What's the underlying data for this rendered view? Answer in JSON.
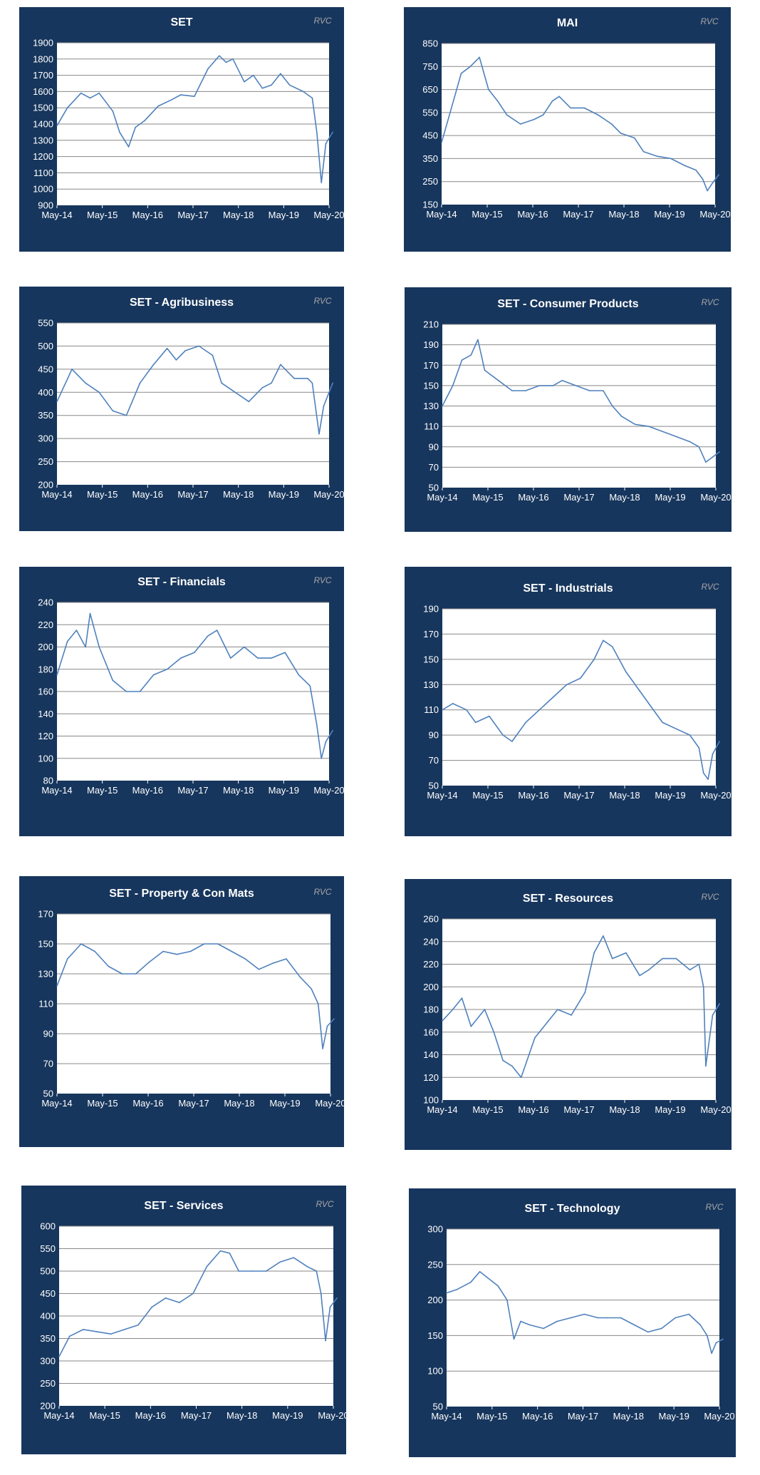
{
  "brand_label": "RVC",
  "colors": {
    "panel": "#17365d",
    "plot": "#ffffff",
    "line": "#4f81bd",
    "grid": "#888888",
    "brand": "#a6a6a6"
  },
  "x_tick_labels": [
    "May-14",
    "May-15",
    "May-16",
    "May-17",
    "May-18",
    "May-19",
    "May-20"
  ],
  "chart_data": [
    {
      "type": "line",
      "title": "SET",
      "ylim": [
        900,
        1900
      ],
      "yticks": [
        900,
        1000,
        1100,
        1200,
        1300,
        1400,
        1500,
        1600,
        1700,
        1800,
        1900
      ],
      "x": [
        2014.37,
        2014.6,
        2014.9,
        2015.1,
        2015.3,
        2015.6,
        2015.75,
        2015.95,
        2016.1,
        2016.3,
        2016.6,
        2016.9,
        2017.1,
        2017.4,
        2017.7,
        2017.95,
        2018.1,
        2018.25,
        2018.5,
        2018.7,
        2018.9,
        2019.1,
        2019.3,
        2019.5,
        2019.8,
        2020.0,
        2020.1,
        2020.2,
        2020.3,
        2020.45
      ],
      "y": [
        1390,
        1500,
        1590,
        1560,
        1590,
        1480,
        1350,
        1260,
        1380,
        1420,
        1510,
        1550,
        1580,
        1570,
        1740,
        1820,
        1780,
        1800,
        1660,
        1700,
        1620,
        1640,
        1710,
        1640,
        1600,
        1560,
        1350,
        1040,
        1280,
        1350
      ]
    },
    {
      "type": "line",
      "title": "MAI",
      "ylim": [
        150,
        850
      ],
      "yticks": [
        150,
        250,
        350,
        450,
        550,
        650,
        750,
        850
      ],
      "x": [
        2014.37,
        2014.6,
        2014.8,
        2015.0,
        2015.2,
        2015.4,
        2015.6,
        2015.8,
        2016.1,
        2016.4,
        2016.6,
        2016.8,
        2016.95,
        2017.2,
        2017.5,
        2017.8,
        2018.1,
        2018.3,
        2018.6,
        2018.8,
        2019.1,
        2019.4,
        2019.7,
        2019.95,
        2020.1,
        2020.2,
        2020.3,
        2020.45
      ],
      "y": [
        420,
        580,
        720,
        750,
        790,
        650,
        600,
        540,
        500,
        520,
        540,
        600,
        620,
        570,
        570,
        540,
        500,
        460,
        440,
        380,
        360,
        350,
        320,
        300,
        260,
        210,
        240,
        280
      ]
    },
    {
      "type": "line",
      "title": "SET - Agribusiness",
      "ylim": [
        200,
        550
      ],
      "yticks": [
        200,
        250,
        300,
        350,
        400,
        450,
        500,
        550
      ],
      "x": [
        2014.37,
        2014.7,
        2015.0,
        2015.3,
        2015.6,
        2015.9,
        2016.2,
        2016.5,
        2016.8,
        2017.0,
        2017.2,
        2017.5,
        2017.8,
        2018.0,
        2018.3,
        2018.6,
        2018.9,
        2019.1,
        2019.3,
        2019.6,
        2019.9,
        2020.0,
        2020.15,
        2020.25,
        2020.45
      ],
      "y": [
        380,
        450,
        420,
        400,
        360,
        350,
        420,
        460,
        495,
        470,
        490,
        500,
        480,
        420,
        400,
        380,
        410,
        420,
        460,
        430,
        430,
        420,
        310,
        370,
        420
      ]
    },
    {
      "type": "line",
      "title": "SET - Consumer Products",
      "ylim": [
        50,
        210
      ],
      "yticks": [
        50,
        70,
        90,
        110,
        130,
        150,
        170,
        190,
        210
      ],
      "x": [
        2014.37,
        2014.6,
        2014.8,
        2015.0,
        2015.15,
        2015.3,
        2015.6,
        2015.9,
        2016.2,
        2016.5,
        2016.8,
        2017.0,
        2017.3,
        2017.6,
        2017.9,
        2018.1,
        2018.3,
        2018.6,
        2018.9,
        2019.2,
        2019.5,
        2019.8,
        2020.0,
        2020.15,
        2020.3,
        2020.45
      ],
      "y": [
        130,
        150,
        175,
        180,
        195,
        165,
        155,
        145,
        145,
        150,
        150,
        155,
        150,
        145,
        145,
        130,
        120,
        112,
        110,
        105,
        100,
        95,
        90,
        75,
        80,
        85
      ]
    },
    {
      "type": "line",
      "title": "SET - Financials",
      "ylim": [
        80,
        240
      ],
      "yticks": [
        80,
        100,
        120,
        140,
        160,
        180,
        200,
        220,
        240
      ],
      "x": [
        2014.37,
        2014.6,
        2014.8,
        2015.0,
        2015.1,
        2015.3,
        2015.6,
        2015.9,
        2016.2,
        2016.5,
        2016.8,
        2017.1,
        2017.4,
        2017.7,
        2017.9,
        2018.2,
        2018.5,
        2018.8,
        2019.1,
        2019.4,
        2019.7,
        2019.95,
        2020.1,
        2020.2,
        2020.3,
        2020.45
      ],
      "y": [
        175,
        205,
        215,
        200,
        230,
        200,
        170,
        160,
        160,
        175,
        180,
        190,
        195,
        210,
        215,
        190,
        200,
        190,
        190,
        195,
        175,
        165,
        130,
        100,
        115,
        125
      ]
    },
    {
      "type": "line",
      "title": "SET - Industrials",
      "ylim": [
        50,
        190
      ],
      "yticks": [
        50,
        70,
        90,
        110,
        130,
        150,
        170,
        190
      ],
      "x": [
        2014.37,
        2014.6,
        2014.9,
        2015.1,
        2015.4,
        2015.7,
        2015.9,
        2016.2,
        2016.5,
        2016.8,
        2017.1,
        2017.4,
        2017.7,
        2017.9,
        2018.1,
        2018.4,
        2018.7,
        2018.9,
        2019.2,
        2019.5,
        2019.8,
        2020.0,
        2020.1,
        2020.2,
        2020.3,
        2020.45
      ],
      "y": [
        110,
        115,
        110,
        100,
        105,
        90,
        85,
        100,
        110,
        120,
        130,
        135,
        150,
        165,
        160,
        140,
        125,
        115,
        100,
        95,
        90,
        80,
        60,
        55,
        75,
        85
      ]
    },
    {
      "type": "line",
      "title": "SET - Property & Con Mats",
      "ylim": [
        50,
        170
      ],
      "yticks": [
        50,
        70,
        90,
        110,
        130,
        150,
        170
      ],
      "x": [
        2014.37,
        2014.6,
        2014.9,
        2015.2,
        2015.5,
        2015.8,
        2016.1,
        2016.4,
        2016.7,
        2017.0,
        2017.3,
        2017.6,
        2017.9,
        2018.2,
        2018.5,
        2018.8,
        2019.1,
        2019.4,
        2019.7,
        2019.95,
        2020.1,
        2020.2,
        2020.3,
        2020.45
      ],
      "y": [
        122,
        140,
        150,
        145,
        135,
        130,
        130,
        138,
        145,
        143,
        145,
        150,
        150,
        145,
        140,
        133,
        137,
        140,
        128,
        120,
        110,
        80,
        95,
        100
      ]
    },
    {
      "type": "line",
      "title": "SET - Resources",
      "ylim": [
        100,
        260
      ],
      "yticks": [
        100,
        120,
        140,
        160,
        180,
        200,
        220,
        240,
        260
      ],
      "x": [
        2014.37,
        2014.6,
        2014.8,
        2015.0,
        2015.3,
        2015.5,
        2015.7,
        2015.9,
        2016.1,
        2016.4,
        2016.7,
        2016.9,
        2017.2,
        2017.5,
        2017.7,
        2017.9,
        2018.1,
        2018.4,
        2018.7,
        2018.9,
        2019.2,
        2019.5,
        2019.8,
        2020.0,
        2020.1,
        2020.15,
        2020.3,
        2020.45
      ],
      "y": [
        170,
        180,
        190,
        165,
        180,
        160,
        135,
        130,
        120,
        155,
        170,
        180,
        175,
        195,
        230,
        245,
        225,
        230,
        210,
        215,
        225,
        225,
        215,
        220,
        200,
        130,
        175,
        185
      ]
    },
    {
      "type": "line",
      "title": "SET - Services",
      "ylim": [
        200,
        600
      ],
      "yticks": [
        200,
        250,
        300,
        350,
        400,
        450,
        500,
        550,
        600
      ],
      "x": [
        2014.37,
        2014.6,
        2014.9,
        2015.2,
        2015.5,
        2015.8,
        2016.1,
        2016.4,
        2016.7,
        2017.0,
        2017.3,
        2017.6,
        2017.9,
        2018.1,
        2018.3,
        2018.6,
        2018.9,
        2019.2,
        2019.5,
        2019.8,
        2020.0,
        2020.1,
        2020.2,
        2020.3,
        2020.45
      ],
      "y": [
        310,
        355,
        370,
        365,
        360,
        370,
        380,
        420,
        440,
        430,
        450,
        510,
        545,
        540,
        500,
        500,
        500,
        520,
        530,
        510,
        500,
        450,
        345,
        420,
        440
      ]
    },
    {
      "type": "line",
      "title": "SET - Technology",
      "ylim": [
        50,
        300
      ],
      "yticks": [
        50,
        100,
        150,
        200,
        250,
        300
      ],
      "x": [
        2014.37,
        2014.6,
        2014.9,
        2015.1,
        2015.3,
        2015.5,
        2015.7,
        2015.85,
        2016.0,
        2016.2,
        2016.5,
        2016.8,
        2017.1,
        2017.4,
        2017.7,
        2017.9,
        2018.2,
        2018.5,
        2018.8,
        2019.1,
        2019.4,
        2019.7,
        2019.95,
        2020.1,
        2020.2,
        2020.3,
        2020.45
      ],
      "y": [
        210,
        215,
        225,
        240,
        230,
        220,
        200,
        145,
        170,
        165,
        160,
        170,
        175,
        180,
        175,
        175,
        175,
        165,
        155,
        160,
        175,
        180,
        165,
        150,
        125,
        140,
        145
      ]
    }
  ]
}
